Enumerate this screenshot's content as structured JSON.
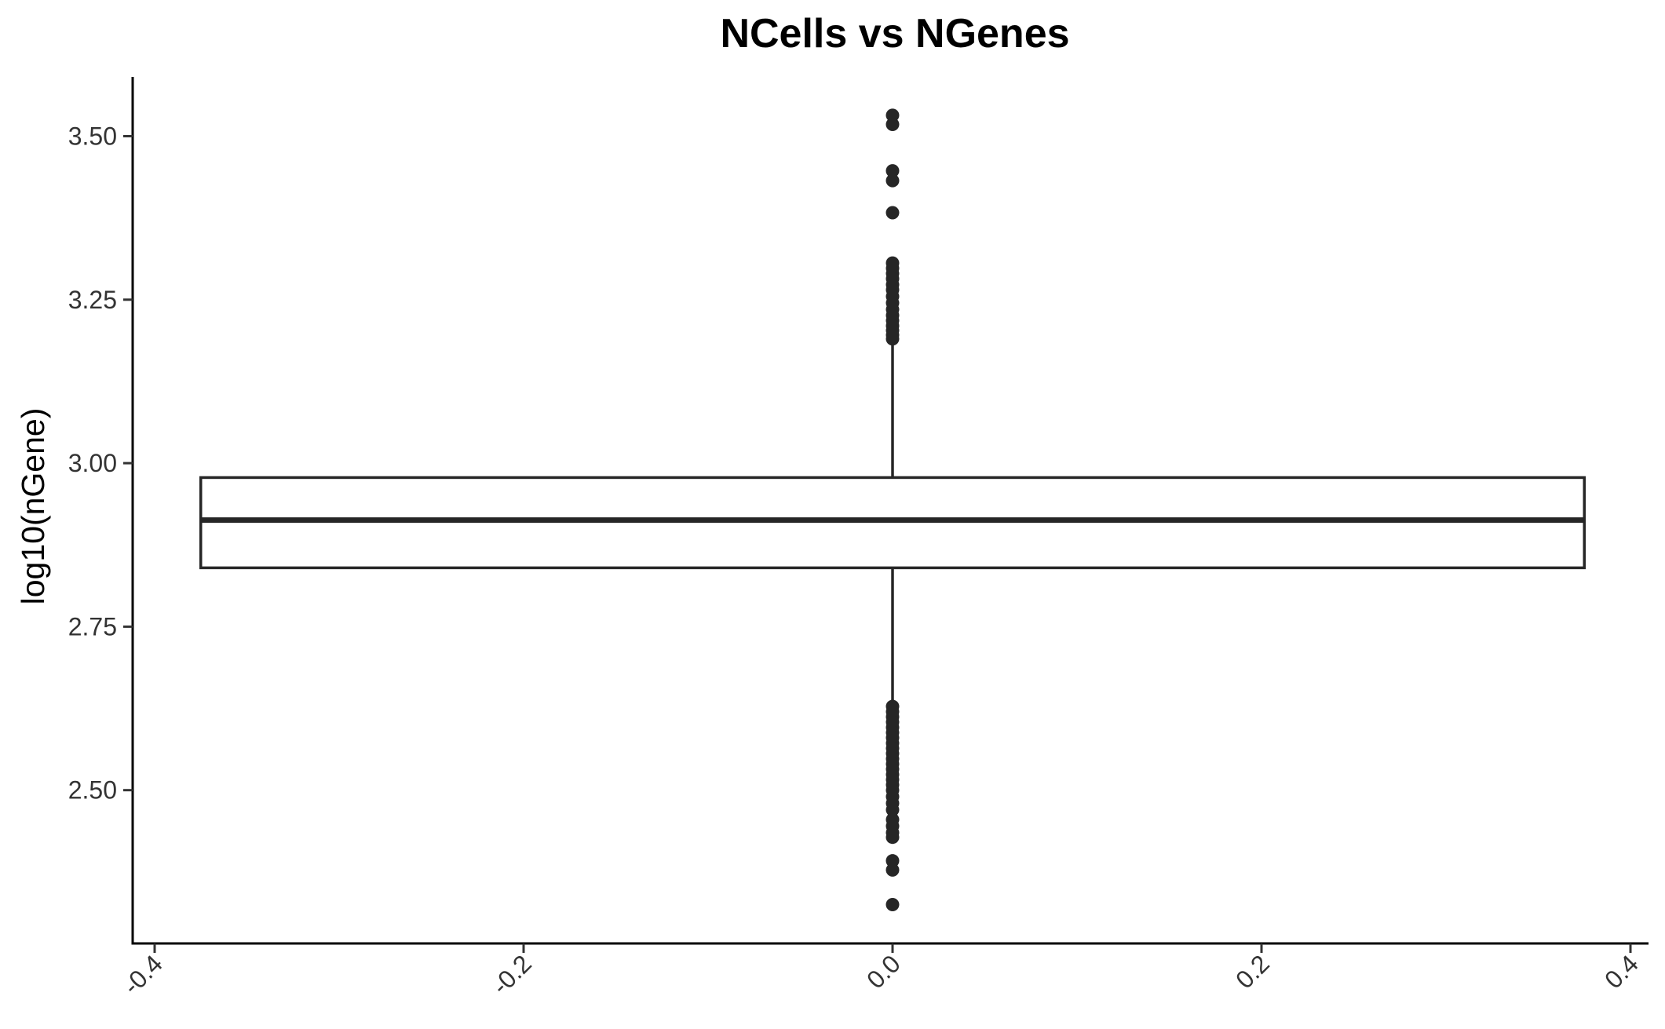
{
  "chart_data": {
    "type": "boxplot",
    "title": "NCells vs NGenes",
    "xlabel": "",
    "ylabel": "log10(nGene)",
    "xlim": [
      -0.4,
      0.4
    ],
    "ylim": [
      2.3,
      3.58
    ],
    "x_ticks": [
      "-0.4",
      "-0.2",
      "0.0",
      "0.2",
      "0.4"
    ],
    "x_tick_values": [
      -0.4,
      -0.2,
      0.0,
      0.2,
      0.4
    ],
    "y_ticks": [
      "2.50",
      "2.75",
      "3.00",
      "3.25",
      "3.50"
    ],
    "y_tick_values": [
      2.5,
      2.75,
      3.0,
      3.25,
      3.5
    ],
    "grid": false,
    "box": {
      "x": 0.0,
      "x_min": -0.375,
      "x_max": 0.375,
      "q1": 2.84,
      "median": 2.913,
      "q3": 2.978,
      "whisker_low": 2.633,
      "whisker_high": 3.185
    },
    "outliers": [
      3.532,
      3.518,
      3.447,
      3.432,
      3.383,
      3.306,
      3.298,
      3.29,
      3.282,
      3.273,
      3.265,
      3.255,
      3.245,
      3.235,
      3.226,
      3.218,
      3.21,
      3.203,
      3.196,
      3.19,
      2.628,
      2.62,
      2.612,
      2.604,
      2.596,
      2.588,
      2.58,
      2.572,
      2.564,
      2.556,
      2.548,
      2.54,
      2.532,
      2.524,
      2.516,
      2.508,
      2.5,
      2.49,
      2.48,
      2.47,
      2.455,
      2.445,
      2.435,
      2.428,
      2.392,
      2.378,
      2.325
    ],
    "colors": {
      "box_fill": "#ffffff",
      "line": "#262626",
      "points": "#262626",
      "axis": "#000000"
    }
  }
}
